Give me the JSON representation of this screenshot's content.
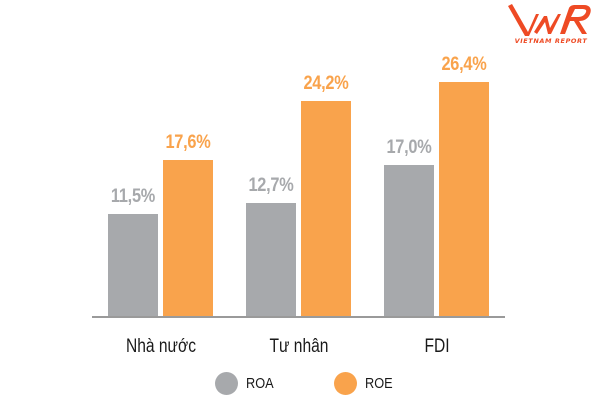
{
  "logo": {
    "mark": "VNR",
    "subtitle": "VIETNAM REPORT",
    "color": "#ee4a24"
  },
  "colors": {
    "roa": "#a7a9ac",
    "roe": "#f9a34c",
    "axis": "#9a9a9a",
    "text": "#1a1a1a"
  },
  "chart_data": {
    "type": "bar",
    "title": "",
    "xlabel": "",
    "ylabel": "",
    "categories": [
      "Nhà nước",
      "Tư nhân",
      "FDI"
    ],
    "series": [
      {
        "name": "ROA",
        "color": "#a7a9ac",
        "values": [
          11.5,
          12.7,
          17.0
        ],
        "labels": [
          "11,5%",
          "12,7%",
          "17,0%"
        ]
      },
      {
        "name": "ROE",
        "color": "#f9a34c",
        "values": [
          17.6,
          24.2,
          26.4
        ],
        "labels": [
          "17,6%",
          "24,2%",
          "26,4%"
        ]
      }
    ],
    "ylim": [
      0,
      30
    ],
    "grid": false,
    "legend_position": "bottom",
    "data_labels": true
  },
  "legend": {
    "items": [
      {
        "label": "ROA",
        "color": "#a7a9ac"
      },
      {
        "label": "ROE",
        "color": "#f9a34c"
      }
    ]
  }
}
